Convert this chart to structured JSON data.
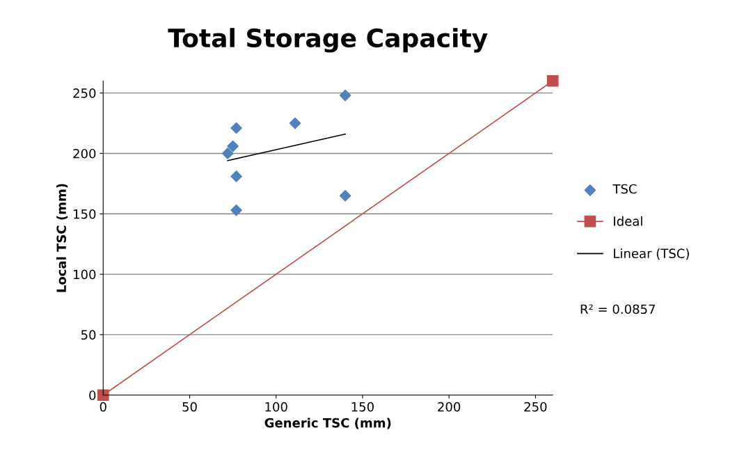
{
  "chart_data": {
    "type": "scatter",
    "title": "Total Storage Capacity",
    "xlabel": "Generic TSC (mm)",
    "ylabel": "Local TSC (mm)",
    "xlim": [
      0,
      260
    ],
    "ylim": [
      0,
      260
    ],
    "xticks": [
      0,
      50,
      100,
      150,
      200,
      250
    ],
    "yticks": [
      0,
      50,
      100,
      150,
      200,
      250
    ],
    "grid": "y",
    "legend": "right",
    "series": [
      {
        "name": "TSC",
        "marker": "diamond",
        "color": "#4f81bd",
        "x": [
          72,
          75,
          77,
          77,
          77,
          111,
          140,
          140
        ],
        "values": [
          200,
          206,
          221,
          181,
          153,
          225,
          248,
          165
        ]
      },
      {
        "name": "Ideal",
        "type": "line",
        "marker": "square",
        "color": "#c0504d",
        "x": [
          0,
          260
        ],
        "values": [
          0,
          260
        ]
      },
      {
        "name": "Linear (TSC)",
        "type": "line",
        "marker": "none",
        "color": "#000000",
        "x": [
          72,
          140
        ],
        "values": [
          194,
          216
        ]
      }
    ],
    "annotations": [
      "R² = 0.0857"
    ]
  }
}
